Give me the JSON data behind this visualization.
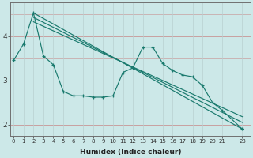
{
  "xlabel": "Humidex (Indice chaleur)",
  "bg_color": "#cce8e8",
  "grid_color_h": "#c8a0a0",
  "grid_color_v": "#b8d0d0",
  "line_color": "#1a7a6e",
  "x_values": [
    0,
    1,
    2,
    3,
    4,
    5,
    6,
    7,
    8,
    9,
    10,
    11,
    12,
    13,
    14,
    15,
    16,
    17,
    18,
    19,
    20,
    21,
    23
  ],
  "y_main": [
    3.45,
    3.82,
    4.52,
    3.55,
    3.35,
    2.75,
    2.65,
    2.65,
    2.62,
    2.62,
    2.65,
    3.18,
    3.28,
    3.75,
    3.75,
    3.38,
    3.22,
    3.12,
    3.08,
    2.88,
    2.5,
    2.32,
    1.9
  ],
  "trend_lines": [
    {
      "x0": 2,
      "y0": 4.52,
      "x1": 23,
      "y1": 1.9
    },
    {
      "x0": 2,
      "y0": 4.42,
      "x1": 23,
      "y1": 2.05
    },
    {
      "x0": 2,
      "y0": 4.32,
      "x1": 23,
      "y1": 2.18
    }
  ],
  "ylim": [
    1.75,
    4.75
  ],
  "yticks": [
    2,
    3,
    4
  ],
  "xlim": [
    -0.3,
    23.8
  ],
  "xticks": [
    0,
    1,
    2,
    3,
    4,
    5,
    6,
    7,
    8,
    9,
    10,
    11,
    12,
    13,
    14,
    15,
    16,
    17,
    18,
    19,
    20,
    21,
    23
  ]
}
